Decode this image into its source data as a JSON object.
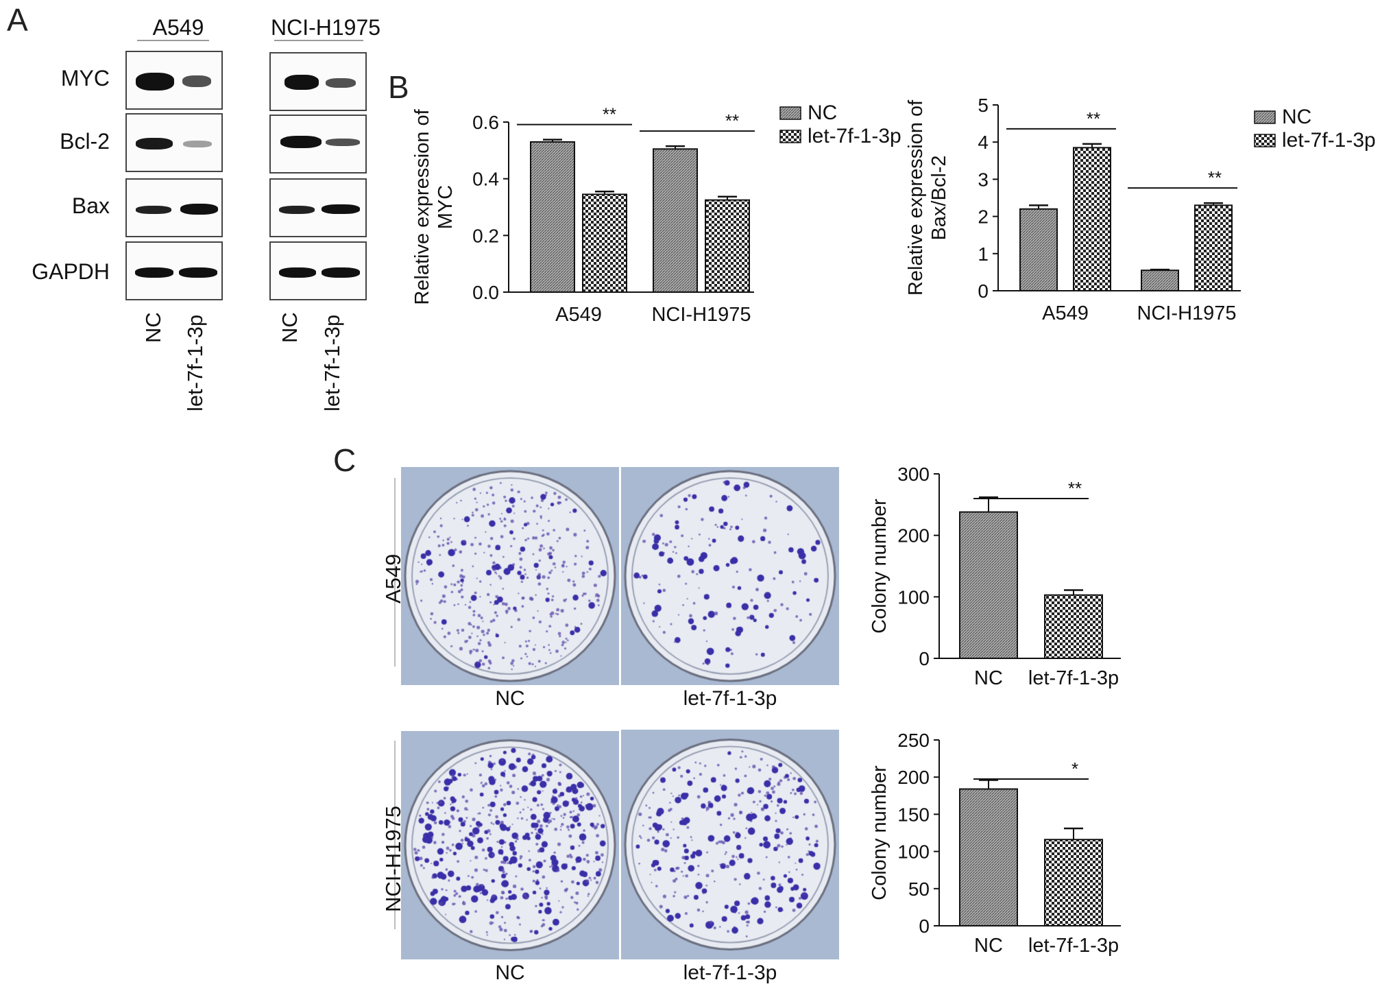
{
  "panels": {
    "a": "A",
    "b": "B",
    "c": "C"
  },
  "western": {
    "cell_lines": [
      "A549",
      "NCI-H1975"
    ],
    "proteins": [
      "MYC",
      "Bcl-2",
      "Bax",
      "GAPDH"
    ],
    "lanes": [
      "NC",
      "let-7f-1-3p"
    ]
  },
  "colony": {
    "rows": [
      "A549",
      "NCI-H1975"
    ],
    "plate_labels": [
      "NC",
      "let-7f-1-3p"
    ]
  },
  "colors": {
    "bar_fill": "#9a9a9a",
    "axis": "#111111",
    "plate_bg": "#a9b9d1",
    "colony": "#3a2fa8"
  },
  "chart_data": [
    {
      "type": "bar",
      "title": "",
      "xlabel": "",
      "ylabel": "Relative expression of MYC",
      "ylabel_lines": [
        "Relative expression of",
        "MYC"
      ],
      "categories": [
        "A549",
        "NCI-H1975"
      ],
      "series": [
        {
          "name": "NC",
          "values": [
            0.53,
            0.505
          ],
          "errors": [
            0.008,
            0.01
          ],
          "pattern": "dense"
        },
        {
          "name": "let-7f-1-3p",
          "values": [
            0.345,
            0.325
          ],
          "errors": [
            0.01,
            0.012
          ],
          "pattern": "checker"
        }
      ],
      "ylim": [
        0,
        0.6
      ],
      "yticks": [
        "0.0",
        "0.2",
        "0.4",
        "0.6"
      ],
      "ytick_values": [
        0,
        0.2,
        0.4,
        0.6
      ],
      "significance": [
        {
          "category": "A549",
          "label": "**"
        },
        {
          "category": "NCI-H1975",
          "label": "**"
        }
      ],
      "legend": "right"
    },
    {
      "type": "bar",
      "title": "",
      "xlabel": "",
      "ylabel": "Relative expression of Bax/Bcl-2",
      "ylabel_lines": [
        "Relative expression of",
        "Bax/Bcl-2"
      ],
      "categories": [
        "A549",
        "NCI-H1975"
      ],
      "series": [
        {
          "name": "NC",
          "values": [
            2.2,
            0.55
          ],
          "errors": [
            0.1,
            0.02
          ],
          "pattern": "dense"
        },
        {
          "name": "let-7f-1-3p",
          "values": [
            3.85,
            2.3
          ],
          "errors": [
            0.1,
            0.06
          ],
          "pattern": "checker"
        }
      ],
      "ylim": [
        0,
        5
      ],
      "yticks": [
        "0",
        "1",
        "2",
        "3",
        "4",
        "5"
      ],
      "ytick_values": [
        0,
        1,
        2,
        3,
        4,
        5
      ],
      "significance": [
        {
          "category": "A549",
          "label": "**"
        },
        {
          "category": "NCI-H1975",
          "label": "**"
        }
      ],
      "legend": "right"
    },
    {
      "type": "bar",
      "title": "",
      "xlabel": "",
      "ylabel": "Colony number",
      "categories": [
        "NC",
        "let-7f-1-3p"
      ],
      "values": [
        238,
        103
      ],
      "errors": [
        24,
        8
      ],
      "patterns": [
        "dense",
        "checker"
      ],
      "ylim": [
        0,
        300
      ],
      "yticks": [
        "0",
        "100",
        "200",
        "300"
      ],
      "ytick_values": [
        0,
        100,
        200,
        300
      ],
      "significance": [
        {
          "label": "**"
        }
      ]
    },
    {
      "type": "bar",
      "title": "",
      "xlabel": "",
      "ylabel": "Colony number",
      "categories": [
        "NC",
        "let-7f-1-3p"
      ],
      "values": [
        184,
        116
      ],
      "errors": [
        12,
        15
      ],
      "patterns": [
        "dense",
        "checker"
      ],
      "ylim": [
        0,
        250
      ],
      "yticks": [
        "0",
        "50",
        "100",
        "150",
        "200",
        "250"
      ],
      "ytick_values": [
        0,
        50,
        100,
        150,
        200,
        250
      ],
      "significance": [
        {
          "label": "*"
        }
      ]
    }
  ]
}
